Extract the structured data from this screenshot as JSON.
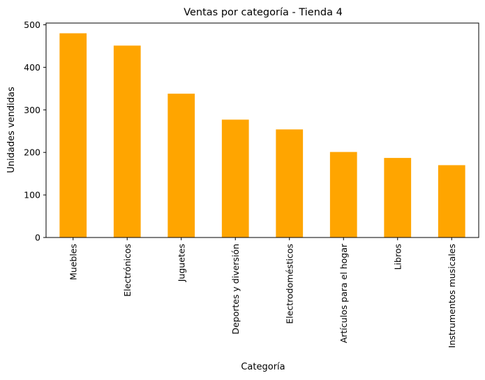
{
  "chart_data": {
    "type": "bar",
    "title": "Ventas por categoría - Tienda 4",
    "xlabel": "Categoría",
    "ylabel": "Unidades vendidas",
    "categories": [
      "Muebles",
      "Electrónicos",
      "Juguetes",
      "Deportes y diversión",
      "Electrodomésticos",
      "Artículos para el hogar",
      "Libros",
      "Instrumentos musicales"
    ],
    "values": [
      480,
      451,
      338,
      277,
      254,
      201,
      187,
      170
    ],
    "ylim": [
      0,
      504
    ],
    "yticks": [
      0,
      100,
      200,
      300,
      400,
      500
    ],
    "bar_color": "#FFA500",
    "grid": false,
    "legend": false
  }
}
